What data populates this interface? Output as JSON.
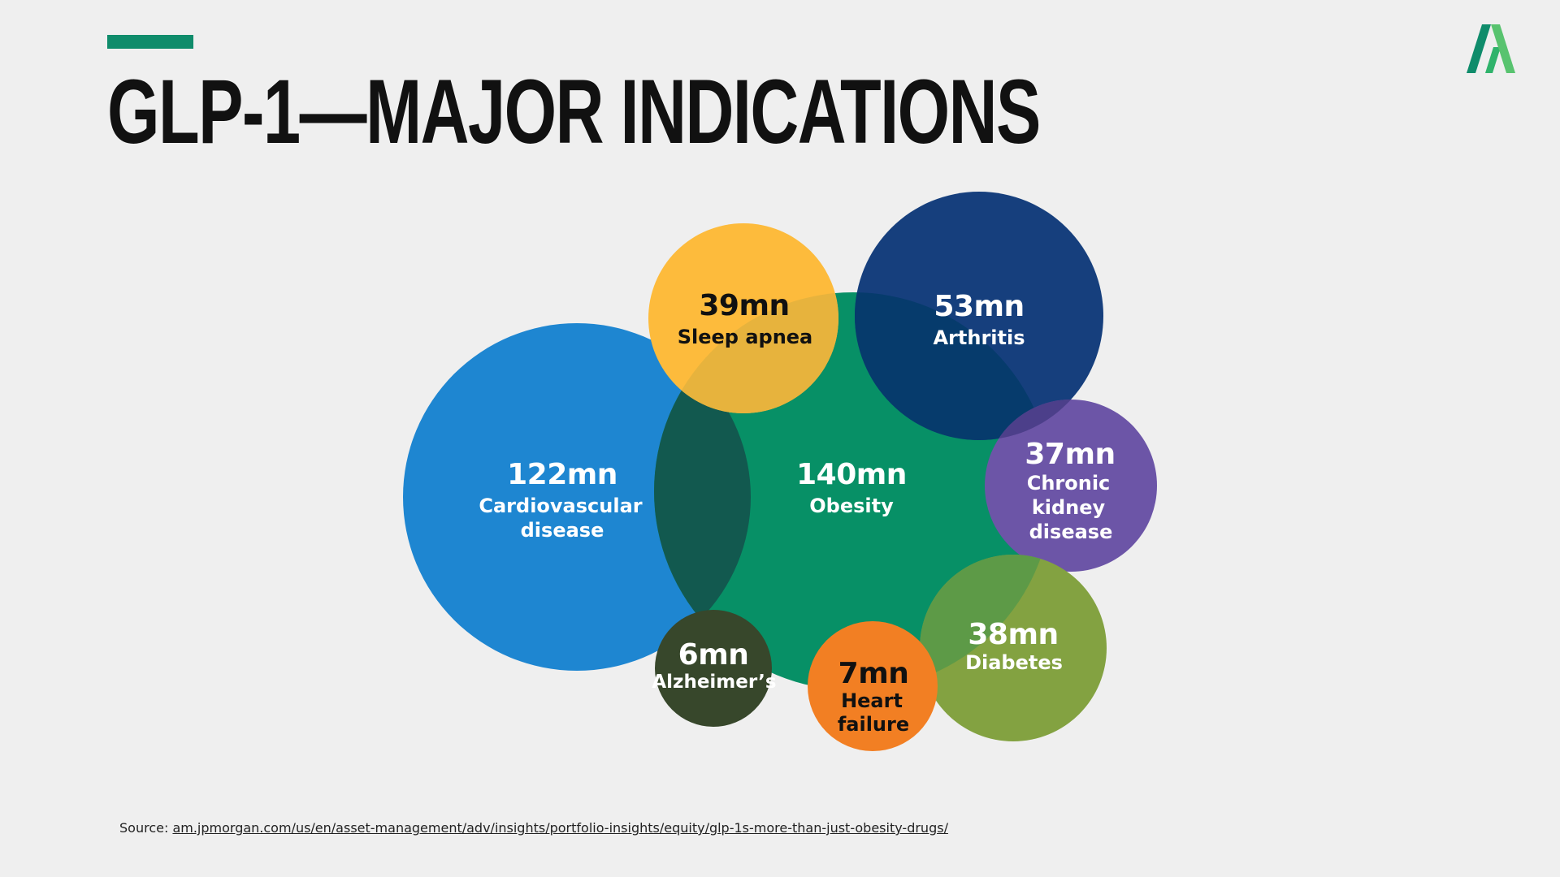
{
  "slide": {
    "title": "GLP-1—MAJOR INDICATIONS",
    "accent_color": "#0f8c6b",
    "logo_icon": "green-peak-logo-icon"
  },
  "indications": [
    {
      "id": "obesity",
      "value": "140mn",
      "label": [
        "Obesity"
      ],
      "color": "#079066"
    },
    {
      "id": "cardiovascular",
      "value": "122mn",
      "label": [
        "Cardiovascular",
        "disease"
      ],
      "color": "#1e86d1"
    },
    {
      "id": "sleep-apnea",
      "value": "39mn",
      "label": [
        "Sleep apnea"
      ],
      "color": "#fdbb3c"
    },
    {
      "id": "arthritis",
      "value": "53mn",
      "label": [
        "Arthritis"
      ],
      "color": "#163f7d"
    },
    {
      "id": "chronic-kidney",
      "value": "37mn",
      "label": [
        "Chronic",
        "kidney",
        "disease"
      ],
      "color": "#6c55a7"
    },
    {
      "id": "diabetes",
      "value": "38mn",
      "label": [
        "Diabetes"
      ],
      "color": "#83a241"
    },
    {
      "id": "heart-failure",
      "value": "7mn",
      "label": [
        "Heart",
        "failure"
      ],
      "color": "#f27f23"
    },
    {
      "id": "alzheimers",
      "value": "6mn",
      "label": [
        "Alzheimer’s"
      ],
      "color": "#37472b"
    }
  ],
  "source": {
    "prefix": "Source:",
    "link_text": "am.jpmorgan.com/us/en/asset-management/adv/insights/portfolio-insights/equity/glp-1s-more-than-just-obesity-drugs/"
  }
}
